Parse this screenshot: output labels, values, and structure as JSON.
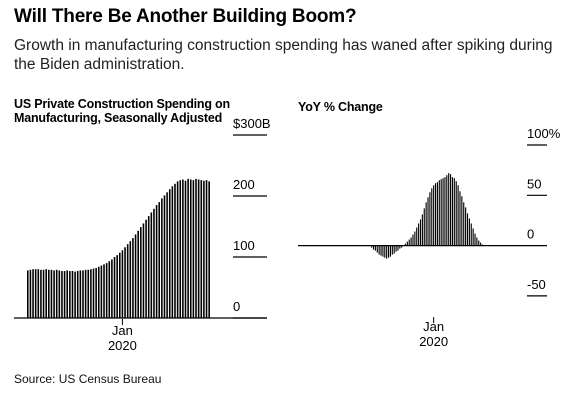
{
  "headline": "Will There Be Another Building Boom?",
  "subhead": "Growth in manufacturing construction spending has waned after spiking during the Biden administration.",
  "source": "Source: US Census Bureau",
  "chart_data": [
    {
      "type": "bar",
      "title_lines": [
        "US Private Construction Spending on",
        "Manufacturing, Seasonally Adjusted"
      ],
      "ylim": [
        0,
        300
      ],
      "y_ticks": [
        0,
        100,
        200,
        300
      ],
      "y_tick_labels": [
        "0",
        "100",
        "200",
        "$300B"
      ],
      "x_tick_label_lines": [
        "Jan",
        "2020"
      ],
      "x_tick_index": 36,
      "grid": false,
      "values": [
        78,
        79,
        80,
        80,
        80,
        79,
        79,
        80,
        79,
        79,
        78,
        79,
        78,
        77,
        77,
        78,
        77,
        77,
        76,
        77,
        78,
        78,
        79,
        79,
        80,
        81,
        82,
        84,
        86,
        88,
        90,
        93,
        96,
        100,
        103,
        107,
        111,
        116,
        121,
        126,
        131,
        137,
        143,
        149,
        155,
        161,
        167,
        173,
        179,
        185,
        190,
        196,
        201,
        206,
        211,
        216,
        220,
        224,
        226,
        227,
        225,
        228,
        227,
        226,
        228,
        227,
        226,
        225,
        226,
        224
      ]
    },
    {
      "type": "bar",
      "title_lines": [
        "YoY % Change"
      ],
      "ylim": [
        -70,
        100
      ],
      "y_ticks": [
        -50,
        0,
        50,
        100
      ],
      "y_tick_labels": [
        "-50",
        "0",
        "50",
        "100%"
      ],
      "x_tick_label_lines": [
        "Jan",
        "2020"
      ],
      "x_tick_index": 49,
      "grid": false,
      "values": [
        0,
        0,
        0,
        0,
        0,
        0,
        0,
        0,
        0,
        0,
        0,
        0,
        0,
        0,
        0,
        0,
        -2,
        -4,
        -5,
        -7,
        -9,
        -10,
        -11,
        -12,
        -13,
        -12,
        -11,
        -9,
        -8,
        -6,
        -5,
        -3,
        -2,
        0,
        2,
        4,
        6,
        8,
        11,
        14,
        18,
        22,
        26,
        31,
        37,
        43,
        48,
        53,
        57,
        60,
        62,
        63,
        65,
        66,
        67,
        68,
        70,
        72,
        71,
        68,
        67,
        64,
        60,
        54,
        49,
        43,
        38,
        32,
        27,
        22,
        17,
        12,
        8,
        5,
        3,
        1,
        0,
        0,
        0,
        0,
        0,
        0,
        0
      ]
    }
  ]
}
